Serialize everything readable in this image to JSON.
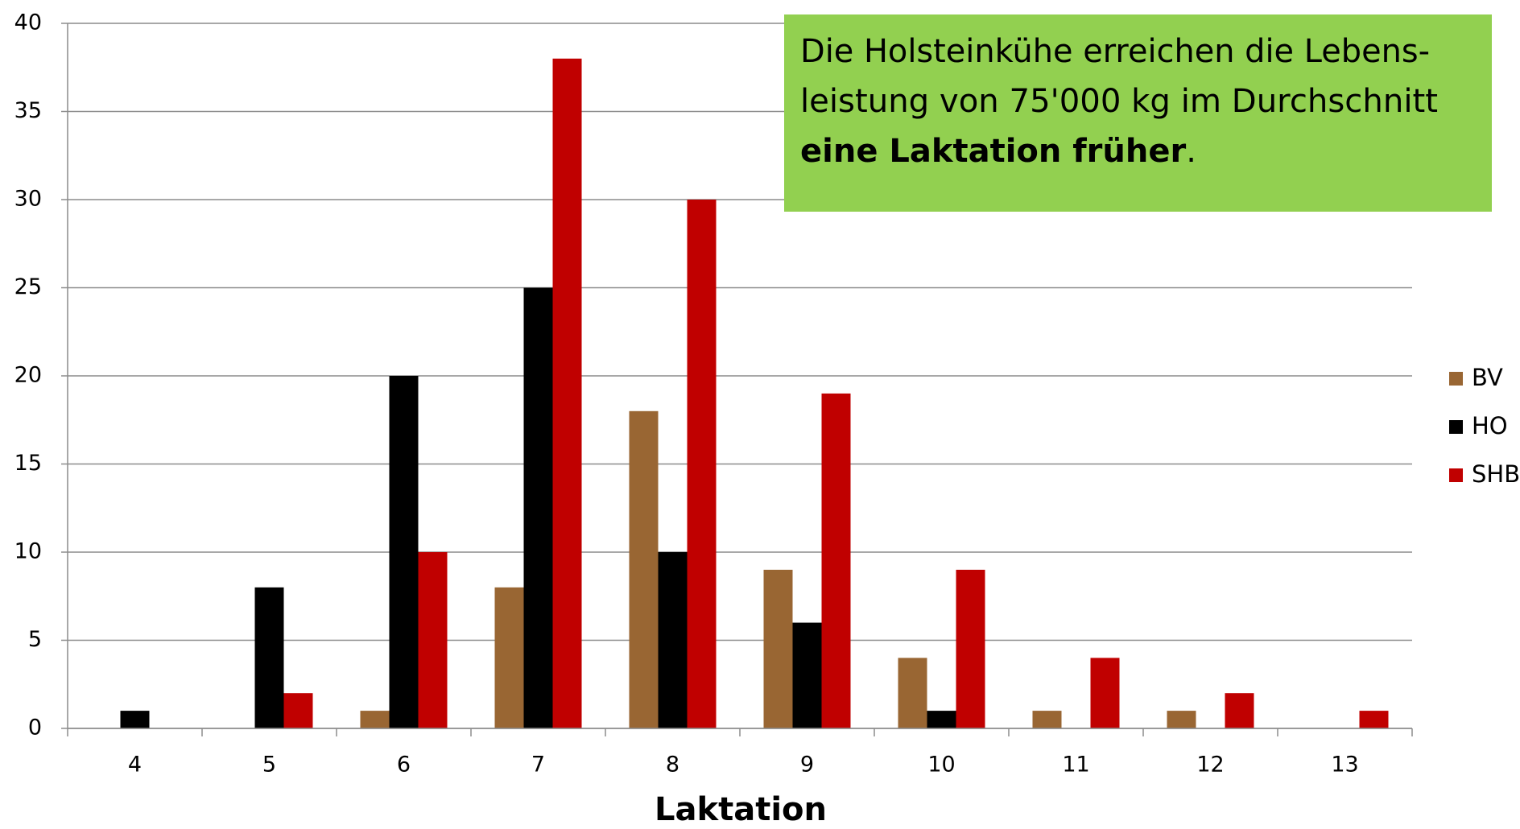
{
  "chart_data": {
    "type": "bar",
    "categories": [
      "4",
      "5",
      "6",
      "7",
      "8",
      "9",
      "10",
      "11",
      "12",
      "13"
    ],
    "series": [
      {
        "name": "BV",
        "color": "#996633",
        "values": [
          0,
          0,
          1,
          8,
          18,
          9,
          4,
          1,
          1,
          0
        ]
      },
      {
        "name": "HO",
        "color": "#000000",
        "values": [
          1,
          8,
          20,
          25,
          10,
          6,
          1,
          0,
          0,
          0
        ]
      },
      {
        "name": "SHB",
        "color": "#c00000",
        "values": [
          0,
          2,
          10,
          38,
          30,
          19,
          9,
          4,
          2,
          1
        ]
      }
    ],
    "ylim": [
      0,
      40
    ],
    "yticks": [
      0,
      5,
      10,
      15,
      20,
      25,
      30,
      35,
      40
    ],
    "grid": true,
    "x_label": "Laktation",
    "legend": "right",
    "annotation": [
      "Die Holsteinkühe erreichen die Lebens-",
      "leistung von 75'000 kg im Durchschnitt",
      "eine Laktation früher",
      "."
    ],
    "annotation_color": "#92d050"
  }
}
